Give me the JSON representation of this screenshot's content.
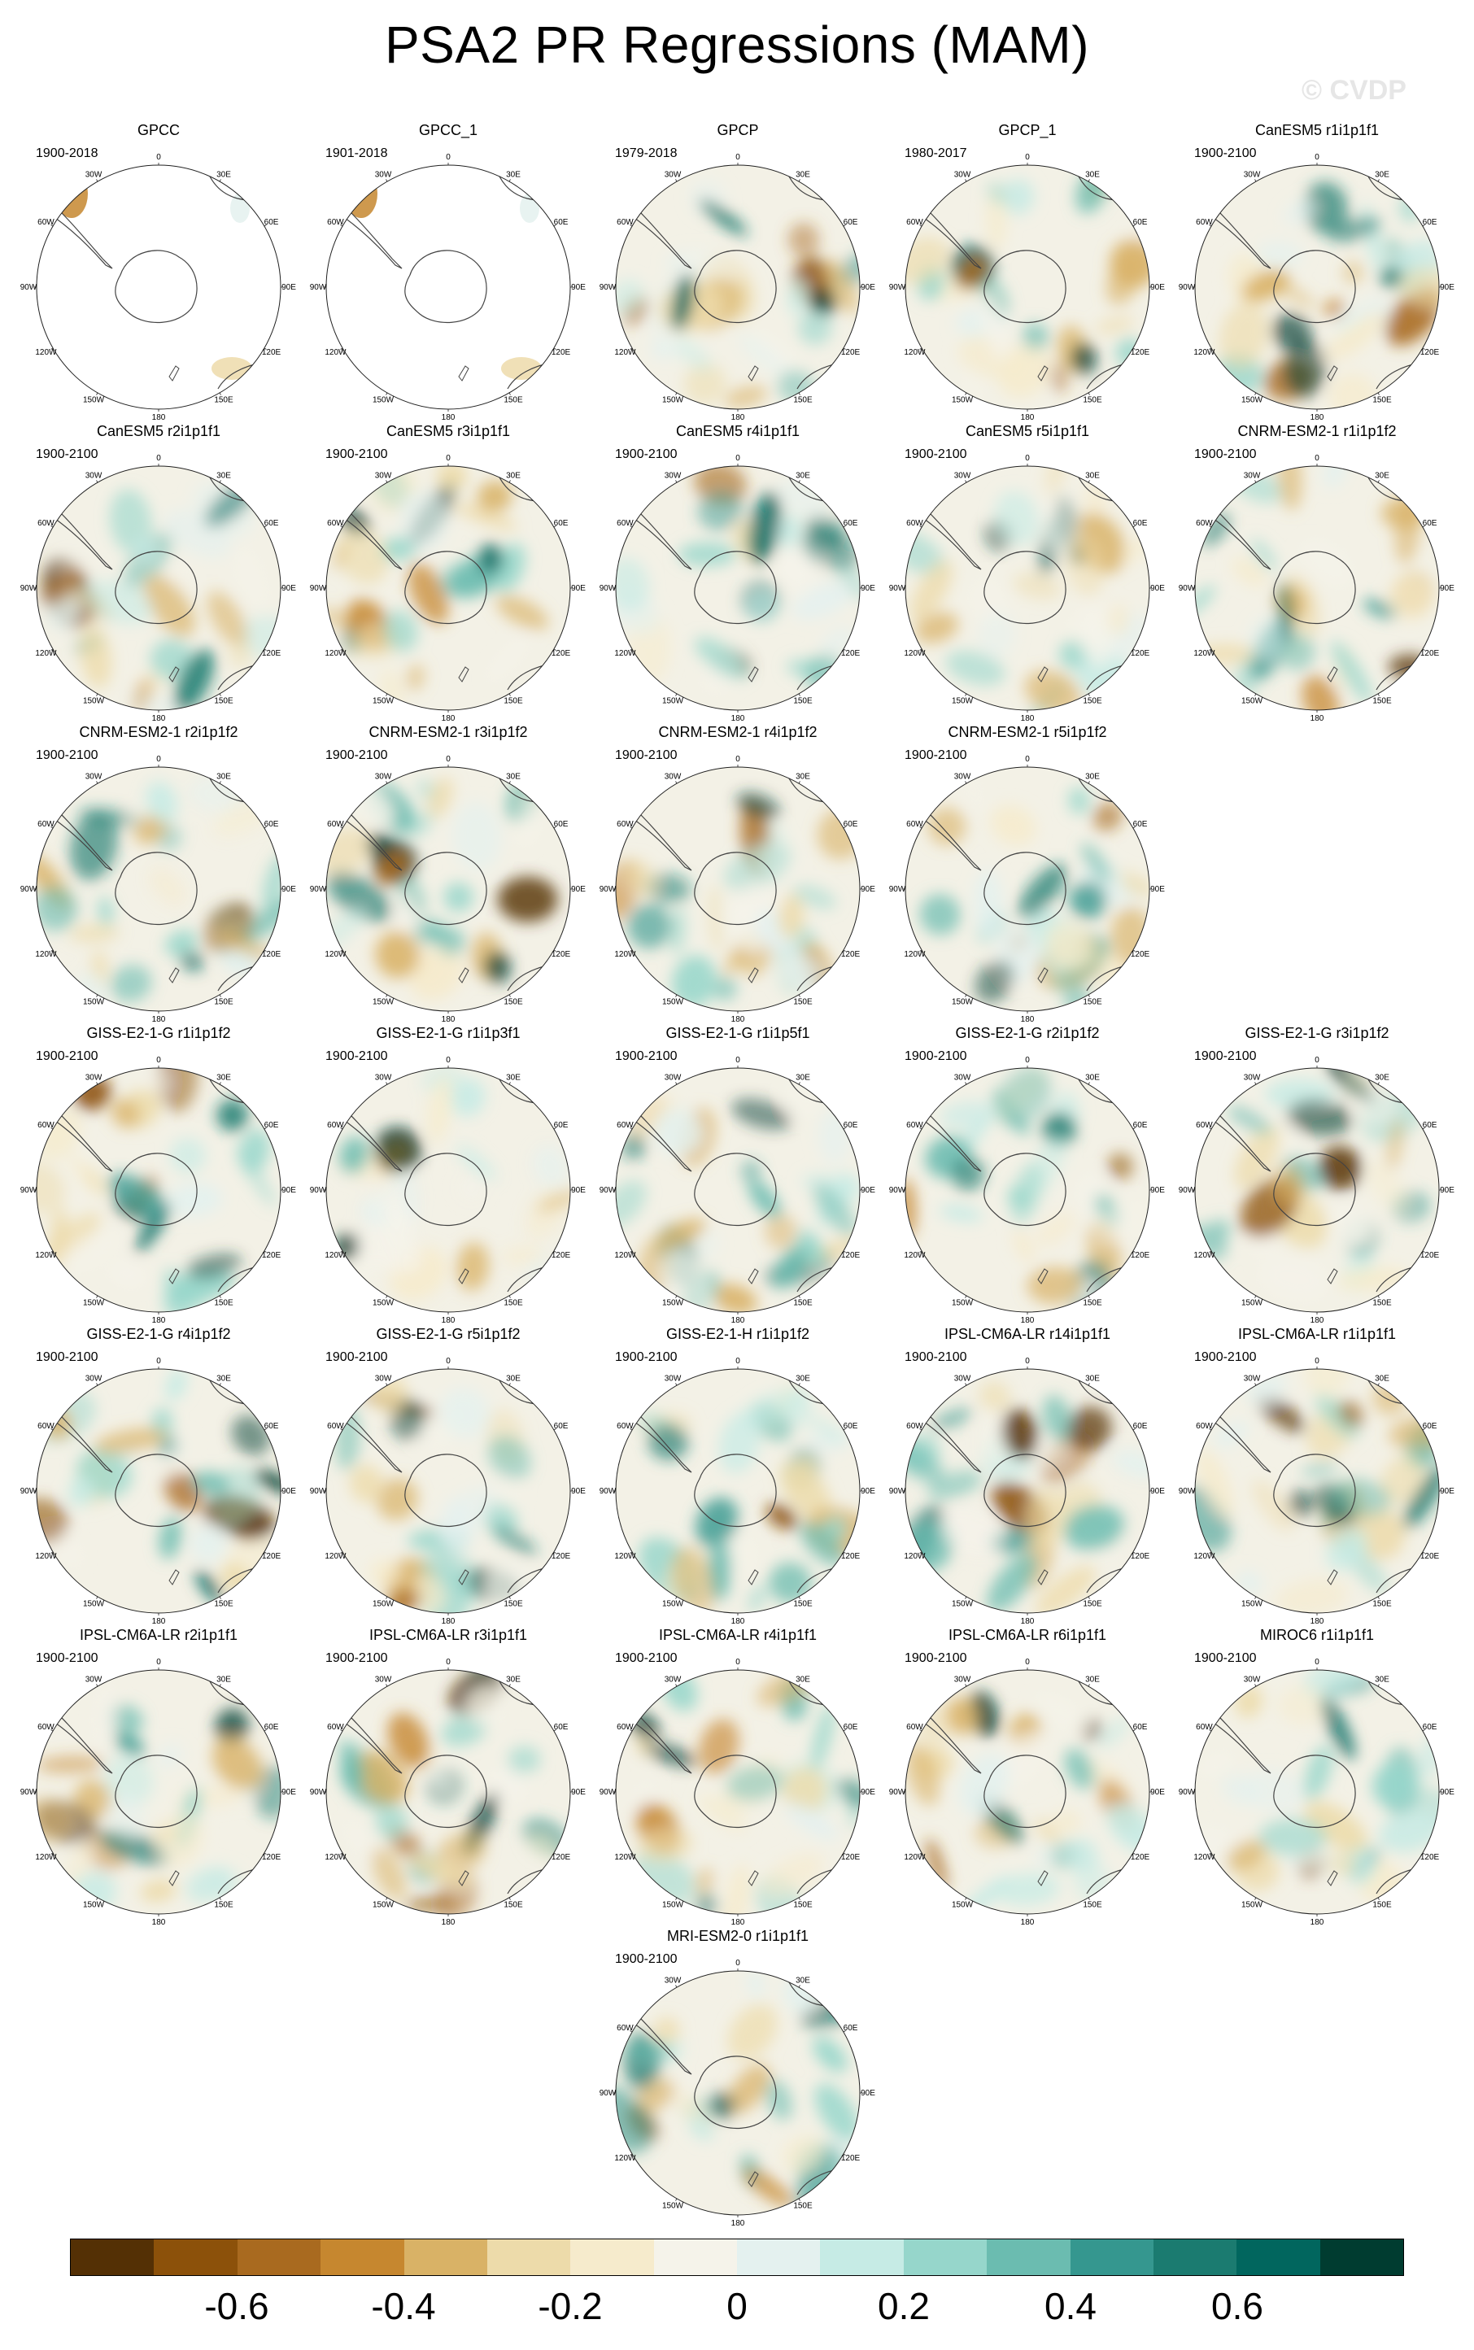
{
  "title": "PSA2 PR Regressions (MAM)",
  "watermark": "© CVDP",
  "grid_labels": {
    "top": "0",
    "ne": "30E",
    "e60": "60E",
    "e90": "90E",
    "e120": "120E",
    "e150": "150E",
    "bottom": "180",
    "w150": "150W",
    "w120": "120W",
    "w90": "90W",
    "w60": "60W",
    "w30": "30W"
  },
  "panels": [
    {
      "title": "GPCC",
      "years": "1900-2018",
      "mask": true
    },
    {
      "title": "GPCC_1",
      "years": "1901-2018",
      "mask": true
    },
    {
      "title": "GPCP",
      "years": "1979-2018"
    },
    {
      "title": "GPCP_1",
      "years": "1980-2017"
    },
    {
      "title": "CanESM5 r1i1p1f1",
      "years": "1900-2100"
    },
    {
      "title": "CanESM5 r2i1p1f1",
      "years": "1900-2100"
    },
    {
      "title": "CanESM5 r3i1p1f1",
      "years": "1900-2100"
    },
    {
      "title": "CanESM5 r4i1p1f1",
      "years": "1900-2100"
    },
    {
      "title": "CanESM5 r5i1p1f1",
      "years": "1900-2100"
    },
    {
      "title": "CNRM-ESM2-1 r1i1p1f2",
      "years": "1900-2100"
    },
    {
      "title": "CNRM-ESM2-1 r2i1p1f2",
      "years": "1900-2100"
    },
    {
      "title": "CNRM-ESM2-1 r3i1p1f2",
      "years": "1900-2100"
    },
    {
      "title": "CNRM-ESM2-1 r4i1p1f2",
      "years": "1900-2100"
    },
    {
      "title": "CNRM-ESM2-1 r5i1p1f2",
      "years": "1900-2100"
    },
    {
      "title": "GISS-E2-1-G r1i1p1f2",
      "years": "1900-2100"
    },
    {
      "title": "GISS-E2-1-G r1i1p3f1",
      "years": "1900-2100"
    },
    {
      "title": "GISS-E2-1-G r1i1p5f1",
      "years": "1900-2100"
    },
    {
      "title": "GISS-E2-1-G r2i1p1f2",
      "years": "1900-2100"
    },
    {
      "title": "GISS-E2-1-G r3i1p1f2",
      "years": "1900-2100"
    },
    {
      "title": "GISS-E2-1-G r4i1p1f2",
      "years": "1900-2100"
    },
    {
      "title": "GISS-E2-1-G r5i1p1f2",
      "years": "1900-2100"
    },
    {
      "title": "GISS-E2-1-H r1i1p1f2",
      "years": "1900-2100"
    },
    {
      "title": "IPSL-CM6A-LR r14i1p1f1",
      "years": "1900-2100"
    },
    {
      "title": "IPSL-CM6A-LR r1i1p1f1",
      "years": "1900-2100"
    },
    {
      "title": "IPSL-CM6A-LR r2i1p1f1",
      "years": "1900-2100"
    },
    {
      "title": "IPSL-CM6A-LR r3i1p1f1",
      "years": "1900-2100"
    },
    {
      "title": "IPSL-CM6A-LR r4i1p1f1",
      "years": "1900-2100"
    },
    {
      "title": "IPSL-CM6A-LR r6i1p1f1",
      "years": "1900-2100"
    },
    {
      "title": "MIROC6 r1i1p1f1",
      "years": "1900-2100"
    },
    {
      "title": "MRI-ESM2-0 r1i1p1f1",
      "years": "1900-2100"
    }
  ],
  "colorbar": {
    "colors": [
      "#543005",
      "#8c510a",
      "#a96a1f",
      "#c6872f",
      "#d9b266",
      "#eddbaa",
      "#f6ebcc",
      "#f5f3ea",
      "#e4f1ef",
      "#c6ebe5",
      "#96d6cb",
      "#6bbcb0",
      "#35978f",
      "#1b7b70",
      "#01665e",
      "#003c30"
    ],
    "tick_labels": [
      "-0.6",
      "-0.4",
      "-0.2",
      "0",
      "0.2",
      "0.4",
      "0.6"
    ]
  }
}
